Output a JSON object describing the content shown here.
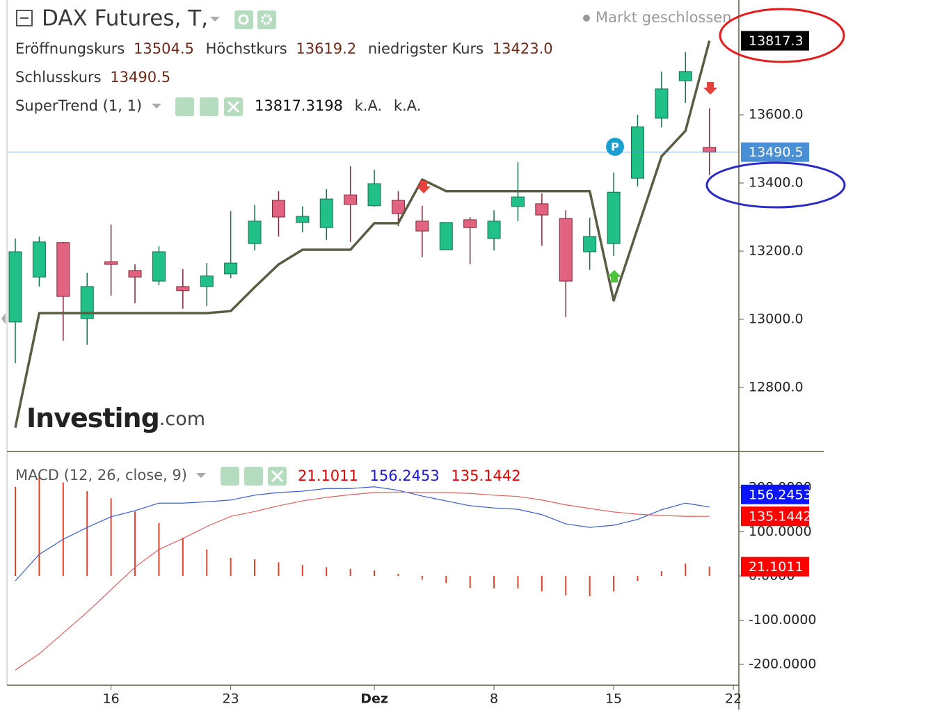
{
  "header": {
    "title": "DAX Futures, T,",
    "status": "Markt geschlossen",
    "ohlc": [
      {
        "label": "Eröffnungskurs",
        "value": "13504.5"
      },
      {
        "label": "Höchstkurs",
        "value": "13619.2"
      },
      {
        "label": "niedrigster Kurs",
        "value": "13423.0"
      },
      {
        "label": "Schlusskurs",
        "value": "13490.5"
      }
    ],
    "supertrend_extra": [
      "k.A.",
      "k.A."
    ]
  },
  "watermark": {
    "brand": "Investing",
    "suffix": ".com"
  },
  "chart_data": [
    {
      "type": "candlestick",
      "x": [
        0,
        1,
        2,
        3,
        4,
        5,
        6,
        7,
        8,
        9,
        10,
        11,
        12,
        13,
        14,
        15,
        16,
        17,
        18,
        19,
        20,
        21,
        22,
        23,
        24,
        25,
        26,
        27,
        28,
        29
      ],
      "open": [
        12992,
        13124,
        13225,
        13002,
        13169,
        13143,
        13112,
        13096,
        13096,
        13133,
        13222,
        13349,
        13284,
        13269,
        13365,
        13333,
        13349,
        13288,
        13204,
        13292,
        13237,
        13331,
        13339,
        13296,
        13198,
        13222,
        13414,
        13590,
        13700,
        13504.5
      ],
      "high": [
        13237,
        13243,
        13227,
        13137,
        13278,
        13161,
        13214,
        13147,
        13165,
        13318,
        13335,
        13376,
        13331,
        13382,
        13449,
        13439,
        13376,
        13333,
        13284,
        13300,
        13320,
        13461,
        13369,
        13320,
        13298,
        13431,
        13600,
        13727,
        13784,
        13619.2
      ],
      "low": [
        12871,
        13096,
        12937,
        12925,
        13069,
        13047,
        13100,
        13031,
        13039,
        13120,
        13202,
        13243,
        13255,
        13233,
        13227,
        13331,
        13273,
        13182,
        13204,
        13161,
        13202,
        13288,
        13216,
        13006,
        13145,
        13186,
        13390,
        13563,
        13635,
        13423
      ],
      "close": [
        13198,
        13227,
        13067,
        13096,
        13161,
        13124,
        13198,
        13084,
        13127,
        13165,
        13288,
        13300,
        13302,
        13353,
        13337,
        13398,
        13310,
        13259,
        13284,
        13269,
        13288,
        13359,
        13306,
        13112,
        13243,
        13373,
        13565,
        13676,
        13727,
        13490.5
      ],
      "up_color": "#20c088",
      "down_color": "#e2637f",
      "supertrend": {
        "name": "SuperTrend (1, 1)",
        "color": "#5a5c44",
        "values": [
          12682,
          13018,
          13018,
          13018,
          13018,
          13018,
          13018,
          13018,
          13018,
          13024,
          13094,
          13161,
          13204,
          13204,
          13204,
          13282,
          13282,
          13410,
          13376,
          13376,
          13376,
          13376,
          13376,
          13376,
          13376,
          13055,
          13267,
          13478,
          13553,
          13817.3198
        ]
      },
      "price_labels": [
        {
          "value": 13817.3,
          "color": "#000000"
        },
        {
          "value": 13490.5,
          "color": "#4a8fd4"
        }
      ],
      "xlim": [
        -0.64,
        30.23
      ],
      "ylim": [
        12614,
        13937
      ],
      "yticks": [
        {
          "value": 12800,
          "label": "12800.0"
        },
        {
          "value": 13000,
          "label": "13000.0"
        },
        {
          "value": 13200,
          "label": "13200.0"
        },
        {
          "value": 13400,
          "label": "13400.0"
        },
        {
          "value": 13600,
          "label": "13600.0"
        }
      ]
    },
    {
      "type": "line",
      "title": "MACD (12, 26, close, 9)",
      "x": [
        0,
        1,
        2,
        3,
        4,
        5,
        6,
        7,
        8,
        9,
        10,
        11,
        12,
        13,
        14,
        15,
        16,
        17,
        18,
        19,
        20,
        21,
        22,
        23,
        24,
        25,
        26,
        27,
        28,
        29
      ],
      "series": [
        {
          "style": "histogram",
          "color": "#e0442a",
          "label_color": "#ff0000",
          "values": [
            202,
            225,
            212,
            192,
            176,
            146,
            120,
            87,
            60,
            41,
            38,
            31,
            25,
            20,
            16,
            13,
            5,
            -8,
            -16,
            -27,
            -28,
            -28,
            -35,
            -44,
            -46,
            -35,
            -11,
            11,
            28,
            21.1011
          ]
        },
        {
          "style": "line",
          "color": "#3a5ad6",
          "label_color": "#0a14ff",
          "values": [
            -11,
            49,
            83,
            110,
            134,
            148,
            165,
            165,
            168,
            172,
            183,
            189,
            192,
            198,
            198,
            202,
            194,
            181,
            170,
            159,
            154,
            151,
            139,
            118,
            110,
            115,
            128,
            150,
            165,
            156.2453
          ]
        },
        {
          "style": "line",
          "color": "#e06060",
          "label_color": "#ff0000",
          "values": [
            -213,
            -176,
            -129,
            -82,
            -31,
            20,
            60,
            85,
            112,
            135,
            146,
            159,
            170,
            178,
            184,
            189,
            190,
            189,
            189,
            187,
            183,
            180,
            172,
            161,
            153,
            145,
            140,
            137,
            135,
            135.1442
          ]
        }
      ],
      "xlim": [
        -0.64,
        30.23
      ],
      "ylim": [
        -247.2,
        280.3
      ],
      "yticks": [
        {
          "value": -200,
          "label": "-200.0000"
        },
        {
          "value": -100,
          "label": "-100.0000"
        },
        {
          "value": 0,
          "label": "0.0000"
        },
        {
          "value": 100,
          "label": "100.0000"
        },
        {
          "value": 200,
          "label": "200.0000"
        }
      ],
      "xticks": [
        {
          "value": 4,
          "label": "16"
        },
        {
          "value": 9,
          "label": "23"
        },
        {
          "value": 15,
          "label": "Dez"
        },
        {
          "value": 20,
          "label": "8"
        },
        {
          "value": 25,
          "label": "15"
        },
        {
          "value": 30,
          "label": "22"
        }
      ]
    }
  ]
}
